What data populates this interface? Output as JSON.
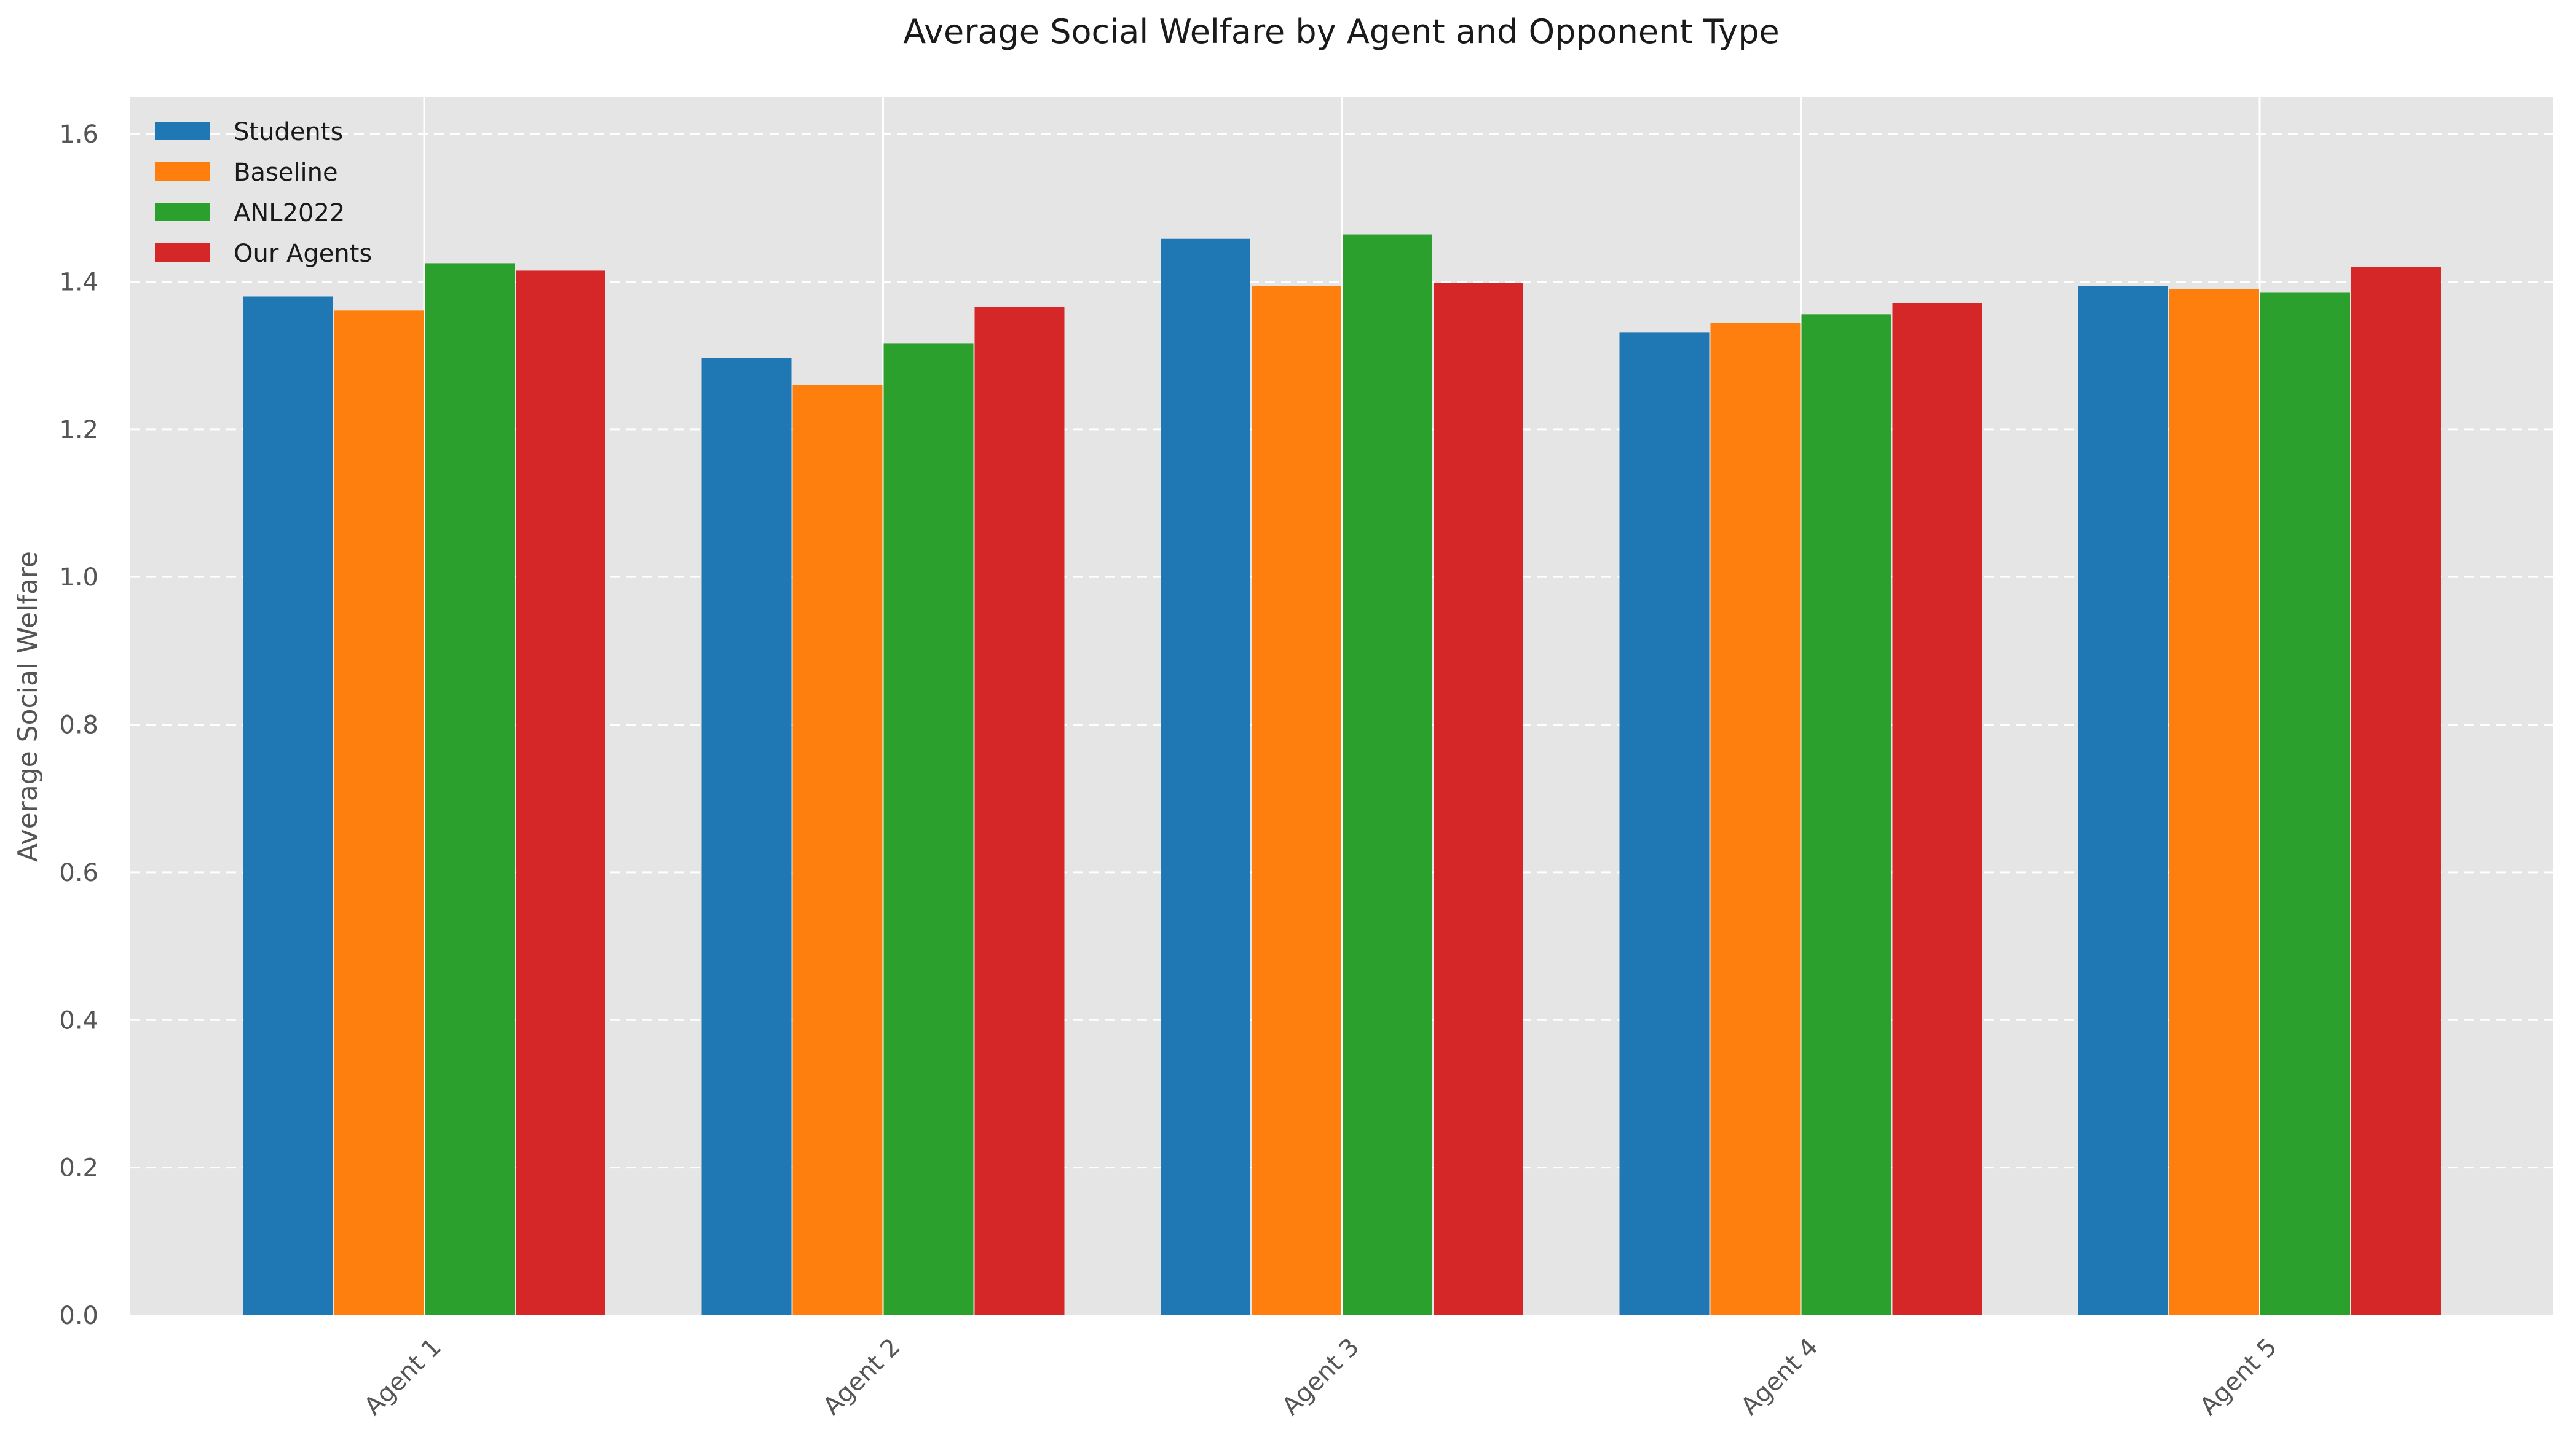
{
  "chart_data": {
    "type": "bar",
    "title": "Average Social Welfare by Agent and Opponent Type",
    "xlabel": "",
    "ylabel": "Average Social Welfare",
    "categories": [
      "Agent 1",
      "Agent 2",
      "Agent 3",
      "Agent 4",
      "Agent 5"
    ],
    "series": [
      {
        "name": "Students",
        "color": "#1f77b4",
        "values": [
          1.38,
          1.297,
          1.458,
          1.331,
          1.394
        ]
      },
      {
        "name": "Baseline",
        "color": "#ff7f0e",
        "values": [
          1.361,
          1.26,
          1.394,
          1.344,
          1.39
        ]
      },
      {
        "name": "ANL2022",
        "color": "#2ca02c",
        "values": [
          1.425,
          1.316,
          1.464,
          1.356,
          1.385
        ]
      },
      {
        "name": "Our Agents",
        "color": "#d62728",
        "values": [
          1.415,
          1.366,
          1.398,
          1.371,
          1.42
        ]
      }
    ],
    "ylim": [
      0,
      1.65
    ],
    "yticks": [
      "0.0",
      "0.2",
      "0.4",
      "0.6",
      "0.8",
      "1.0",
      "1.2",
      "1.4",
      "1.6"
    ],
    "grid": true,
    "legend_position": "top-left",
    "background_color": "#e5e5e5"
  }
}
